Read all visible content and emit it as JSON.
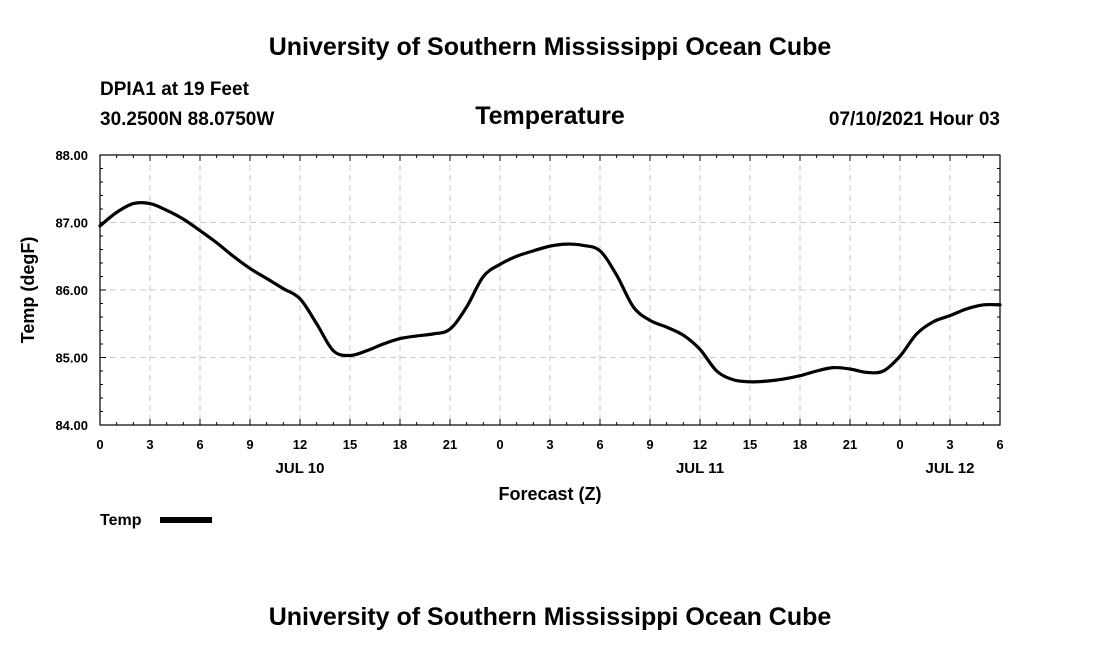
{
  "header": {
    "title": "University of Southern Mississippi Ocean Cube",
    "station": "DPIA1 at 19 Feet",
    "coords": "30.2500N  88.0750W",
    "variable": "Temperature",
    "datetime": "07/10/2021 Hour 03"
  },
  "footer": {
    "title": "University of Southern Mississippi Ocean Cube"
  },
  "legend": {
    "label": "Temp",
    "color": "#000000"
  },
  "chart_data": {
    "type": "line",
    "title": "Temperature",
    "xlabel": "Forecast (Z)",
    "ylabel": "Temp (degF)",
    "ylim": [
      84.0,
      88.0
    ],
    "yticks": [
      "84.00",
      "85.00",
      "86.00",
      "87.00",
      "88.00"
    ],
    "xlim_hours": [
      0,
      54
    ],
    "xtick_labels": [
      "0",
      "3",
      "6",
      "9",
      "12",
      "15",
      "18",
      "21",
      "0",
      "3",
      "6",
      "9",
      "12",
      "15",
      "18",
      "21",
      "0",
      "3",
      "6"
    ],
    "date_labels": [
      {
        "label": "JUL 10",
        "hour": 12
      },
      {
        "label": "JUL 11",
        "hour": 36
      },
      {
        "label": "JUL 12",
        "hour": 51
      }
    ],
    "grid": true,
    "series": [
      {
        "name": "Temp",
        "color": "#000000",
        "x": [
          0,
          1,
          2,
          3,
          4,
          5,
          6,
          7,
          8,
          9,
          10,
          11,
          12,
          13,
          14,
          15,
          16,
          17,
          18,
          19,
          20,
          21,
          22,
          23,
          24,
          25,
          26,
          27,
          28,
          29,
          30,
          31,
          32,
          33,
          34,
          35,
          36,
          37,
          38,
          39,
          40,
          41,
          42,
          43,
          44,
          45,
          46,
          47,
          48,
          49,
          50,
          51,
          52,
          53,
          54
        ],
        "values": [
          86.95,
          87.15,
          87.28,
          87.28,
          87.18,
          87.05,
          86.88,
          86.7,
          86.5,
          86.32,
          86.17,
          86.02,
          85.87,
          85.5,
          85.1,
          85.03,
          85.1,
          85.2,
          85.28,
          85.32,
          85.35,
          85.42,
          85.75,
          86.2,
          86.38,
          86.5,
          86.58,
          86.65,
          86.68,
          86.66,
          86.58,
          86.22,
          85.75,
          85.55,
          85.45,
          85.33,
          85.12,
          84.8,
          84.67,
          84.64,
          84.65,
          84.68,
          84.73,
          84.8,
          84.85,
          84.83,
          84.78,
          84.8,
          85.02,
          85.35,
          85.53,
          85.62,
          85.72,
          85.78,
          85.78
        ]
      }
    ]
  }
}
